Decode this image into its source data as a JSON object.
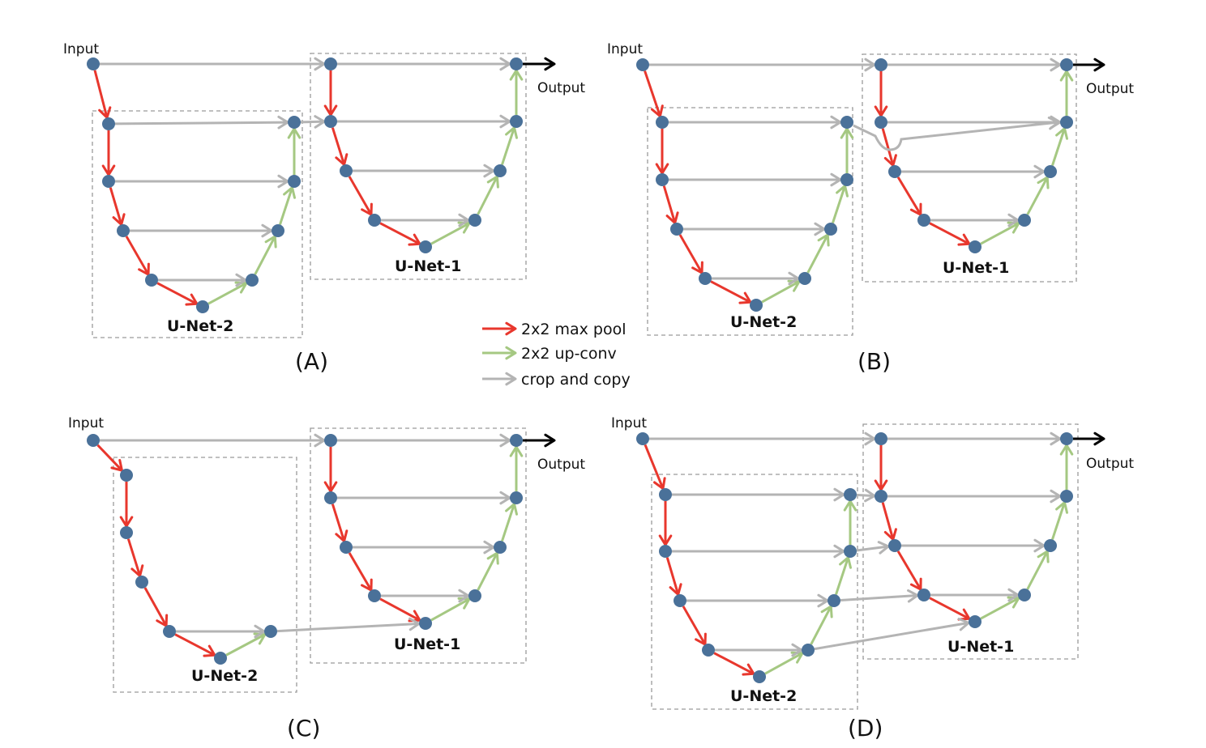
{
  "figure": {
    "legend": {
      "items": [
        {
          "key": "max_pool",
          "label": "2x2 max pool",
          "color": "#e8372d"
        },
        {
          "key": "up_conv",
          "label": "2x2 up-conv",
          "color": "#a5c882"
        },
        {
          "key": "copy",
          "label": "crop and copy",
          "color": "#b4b4b4"
        }
      ]
    },
    "colors": {
      "node": "#4a7199",
      "output_arrow": "#000000",
      "box_border": "#9a9a9a"
    },
    "panels": [
      {
        "id": "A",
        "caption": "(A)",
        "input_label": "Input",
        "output_label": "Output",
        "unet1_label": "U-Net-1",
        "unet2_label": "U-Net-2",
        "description": "U-Net-2 nested at depth 1 of U-Net-1; its top output feeds U-Net-1 level 1 copy"
      },
      {
        "id": "B",
        "caption": "(B)",
        "input_label": "Input",
        "output_label": "Output",
        "unet1_label": "U-Net-1",
        "unet2_label": "U-Net-2",
        "description": "U-Net-2 output concatenated to U-Net-1 decoder level 1 via skip"
      },
      {
        "id": "C",
        "caption": "(C)",
        "input_label": "Input",
        "output_label": "Output",
        "unet1_label": "U-Net-1",
        "unet2_label": "U-Net-2",
        "description": "U-Net-2 bottleneck-level output feeds U-Net-1 bottom"
      },
      {
        "id": "D",
        "caption": "(D)",
        "input_label": "Input",
        "output_label": "Output",
        "unet1_label": "U-Net-1",
        "unet2_label": "U-Net-2",
        "description": "U-Net-2 decoder levels each feed corresponding U-Net-1 encoder levels"
      }
    ]
  }
}
